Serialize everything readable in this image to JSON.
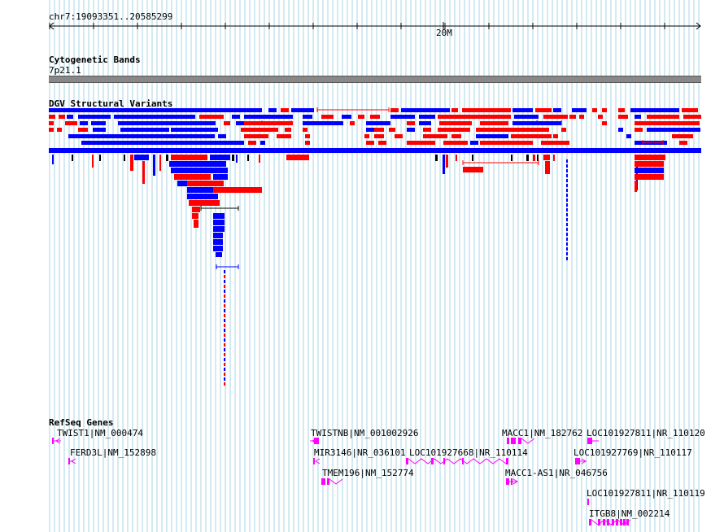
{
  "ruler": {
    "position_label": "chr7:19093351..20585299",
    "tick_label": "20M"
  },
  "tracks": {
    "cytoband": {
      "title": "Cytogenetic Bands",
      "band_name": "7p21.1",
      "band_color": "#888888"
    },
    "dgv": {
      "title": "DGV Structural Variants",
      "colors": {
        "gain": "#ff0000",
        "loss": "#0000ff",
        "both": "#000000"
      }
    },
    "refseq": {
      "title": "RefSeq Genes",
      "gene_color": "#ff00ff",
      "genes": [
        {
          "label": "TWIST1|NM_000474"
        },
        {
          "label": "FERD3L|NM_152898"
        },
        {
          "label": "TWISTNB|NM_001002926"
        },
        {
          "label": "MIR3146|NR_036101"
        },
        {
          "label": "TMEM196|NM_152774"
        },
        {
          "label": "LOC101927668|NR_110114"
        },
        {
          "label": "MACC1|NM_182762"
        },
        {
          "label": "MACC1-AS1|NR_046756"
        },
        {
          "label": "LOC101927811|NR_110120"
        },
        {
          "label": "LOC101927769|NR_110117"
        },
        {
          "label": "LOC101927811|NR_110119"
        },
        {
          "label": "ITGB8|NM_002214"
        }
      ]
    }
  }
}
